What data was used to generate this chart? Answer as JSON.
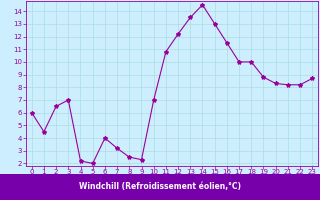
{
  "x": [
    0,
    1,
    2,
    3,
    4,
    5,
    6,
    7,
    8,
    9,
    10,
    11,
    12,
    13,
    14,
    15,
    16,
    17,
    18,
    19,
    20,
    21,
    22,
    23
  ],
  "y": [
    6.0,
    4.5,
    6.5,
    7.0,
    2.2,
    2.0,
    4.0,
    3.2,
    2.5,
    2.3,
    7.0,
    10.8,
    12.2,
    13.5,
    14.5,
    13.0,
    11.5,
    10.0,
    10.0,
    8.8,
    8.3,
    8.2,
    8.2,
    8.7
  ],
  "line_color": "#990099",
  "marker": "*",
  "marker_size": 3,
  "bg_color": "#cceeff",
  "grid_color": "#aadddd",
  "tick_color": "#990099",
  "xlim": [
    -0.5,
    23.5
  ],
  "ylim": [
    1.8,
    14.8
  ],
  "yticks": [
    2,
    3,
    4,
    5,
    6,
    7,
    8,
    9,
    10,
    11,
    12,
    13,
    14
  ],
  "xticks": [
    0,
    1,
    2,
    3,
    4,
    5,
    6,
    7,
    8,
    9,
    10,
    11,
    12,
    13,
    14,
    15,
    16,
    17,
    18,
    19,
    20,
    21,
    22,
    23
  ],
  "xlabel": "Windchill (Refroidissement éolien,°C)",
  "spine_color": "#990099",
  "banner_color": "#7700aa",
  "banner_text_color": "#ffffff",
  "tick_fontsize": 5.0,
  "xlabel_fontsize": 5.5
}
